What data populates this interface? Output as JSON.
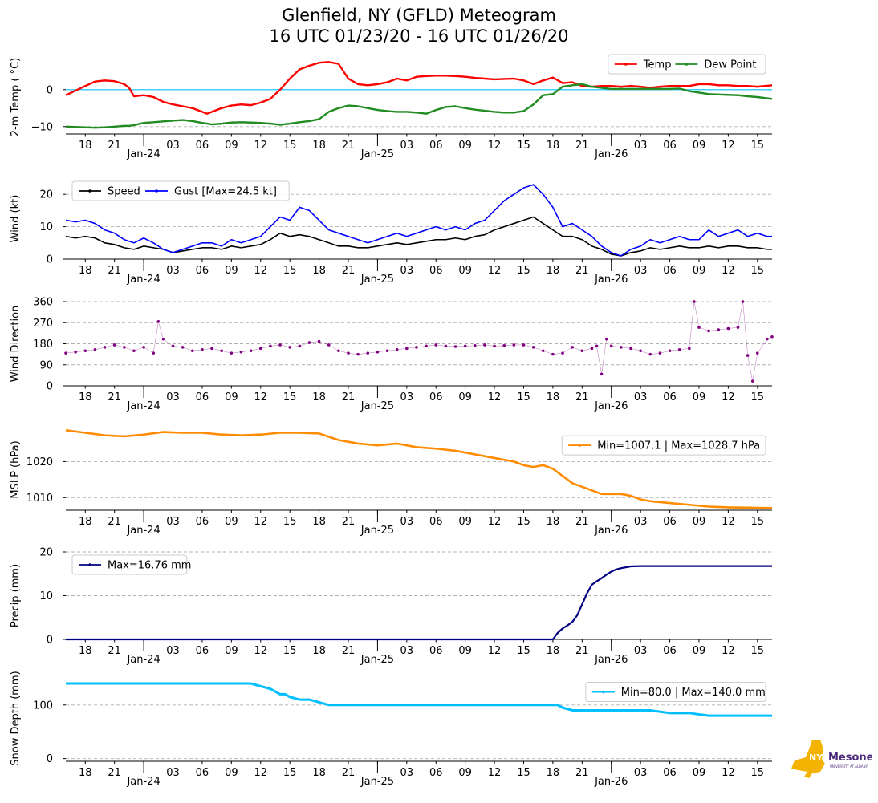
{
  "title": {
    "line1": "Glenfield, NY (GFLD) Meteogram",
    "line2": "16 UTC 01/23/20 - 16 UTC 01/26/20"
  },
  "logo": {
    "text": "Mesonet",
    "badge": "NYS",
    "subtext": "UNIVERSITY AT ALBANY",
    "icon": "new-york-state-icon"
  },
  "x_axis": {
    "hours_start": 16,
    "hours_end": 88.5,
    "hour_ticks": [
      18,
      21,
      24,
      27,
      30,
      33,
      36,
      39,
      42,
      45,
      48,
      51,
      54,
      57,
      60,
      63,
      66,
      69,
      72,
      75,
      78,
      81,
      84,
      87
    ],
    "hour_labels": [
      "18",
      "21",
      "",
      "03",
      "06",
      "09",
      "12",
      "15",
      "18",
      "21",
      "",
      "03",
      "06",
      "09",
      "12",
      "15",
      "18",
      "21",
      "",
      "03",
      "06",
      "09",
      "12",
      "15"
    ],
    "date_ticks": [
      24,
      48,
      72
    ],
    "date_labels": [
      "Jan-24",
      "Jan-25",
      "Jan-26"
    ]
  },
  "colors": {
    "temp": "#ff0000",
    "dew": "#228b22",
    "zero": "#00bfff",
    "speed": "#000000",
    "gust": "#0000ff",
    "dir": "#800080",
    "mslp": "#ff8c00",
    "precip": "#000080",
    "snow": "#00bfff",
    "grid": "#b0b0b0"
  },
  "chart_data": [
    {
      "type": "line",
      "id": "temp",
      "ylabel": "2-m Temp ( °C)",
      "ylim": [
        -12,
        8
      ],
      "yticks": [
        -10,
        0
      ],
      "ytick_labels": [
        "−10",
        "0"
      ],
      "gridlines": [
        -10
      ],
      "zero_line": 0,
      "x": [
        16,
        18,
        19,
        20,
        21,
        22,
        22.5,
        23,
        24,
        25,
        26,
        27,
        28,
        29,
        30,
        30.5,
        31,
        32,
        33,
        34,
        35,
        36,
        37,
        38,
        39,
        40,
        41,
        42,
        43,
        44,
        45,
        46,
        47,
        48,
        49,
        50,
        51,
        52,
        53,
        54,
        55,
        56,
        57,
        58,
        59,
        60,
        61,
        62,
        63,
        64,
        65,
        66,
        67,
        68,
        69,
        70,
        71,
        72,
        73,
        74,
        75,
        76,
        77,
        78,
        79,
        80,
        81,
        82,
        83,
        84,
        85,
        86,
        87,
        88.5
      ],
      "series": [
        {
          "name": "Temp",
          "color_key": "temp",
          "width": 2.4,
          "legend": "Temp",
          "values": [
            -1.5,
            1,
            2.2,
            2.5,
            2.3,
            1.5,
            0.5,
            -1.8,
            -1.5,
            -2,
            -3.3,
            -4,
            -4.5,
            -5,
            -6,
            -6.5,
            -6,
            -5,
            -4.3,
            -4,
            -4.2,
            -3.5,
            -2.5,
            0,
            3,
            5.5,
            6.5,
            7.3,
            7.5,
            7,
            3,
            1.5,
            1.2,
            1.5,
            2,
            3,
            2.5,
            3.5,
            3.7,
            3.8,
            3.8,
            3.7,
            3.5,
            3.2,
            3,
            2.8,
            2.9,
            3,
            2.5,
            1.5,
            2.5,
            3.3,
            1.8,
            2,
            1,
            0.8,
            1,
            1,
            0.8,
            1,
            0.8,
            0.5,
            0.8,
            1,
            1,
            1,
            1.5,
            1.5,
            1.2,
            1.2,
            1,
            1,
            0.8,
            1.2
          ]
        },
        {
          "name": "Dew Point",
          "color_key": "dew",
          "width": 2.4,
          "legend": "Dew Point",
          "values": [
            -10,
            -10.2,
            -10.3,
            -10.2,
            -10,
            -9.8,
            -9.8,
            -9.6,
            -9,
            -8.8,
            -8.6,
            -8.4,
            -8.2,
            -8.5,
            -9,
            -9.2,
            -9.4,
            -9.2,
            -8.9,
            -8.8,
            -8.9,
            -9,
            -9.2,
            -9.5,
            -9.2,
            -8.8,
            -8.5,
            -8,
            -6,
            -5,
            -4.3,
            -4.5,
            -5,
            -5.5,
            -5.8,
            -6,
            -6,
            -6.2,
            -6.5,
            -5.5,
            -4.7,
            -4.5,
            -5,
            -5.4,
            -5.7,
            -6,
            -6.2,
            -6.2,
            -5.8,
            -4,
            -1.5,
            -1.2,
            0.8,
            1.2,
            1.5,
            0.8,
            0.5,
            0.2,
            0.2,
            0.2,
            0.2,
            0.2,
            0.2,
            0.2,
            0.3,
            -0.4,
            -0.8,
            -1.2,
            -1.3,
            -1.4,
            -1.5,
            -1.8,
            -2,
            -2.5
          ]
        }
      ]
    },
    {
      "type": "line",
      "id": "wind",
      "ylabel": "Wind (kt)",
      "ylim": [
        0,
        25
      ],
      "yticks": [
        0,
        10,
        20
      ],
      "ytick_labels": [
        "0",
        "10",
        "20"
      ],
      "gridlines": [
        10,
        20
      ],
      "x": [
        16,
        17,
        18,
        19,
        20,
        21,
        22,
        23,
        24,
        25,
        26,
        27,
        28,
        29,
        30,
        31,
        32,
        33,
        34,
        35,
        36,
        37,
        38,
        39,
        40,
        41,
        42,
        43,
        44,
        45,
        46,
        47,
        48,
        49,
        50,
        51,
        52,
        53,
        54,
        55,
        56,
        57,
        58,
        59,
        60,
        61,
        62,
        63,
        64,
        65,
        66,
        67,
        68,
        69,
        70,
        71,
        72,
        73,
        74,
        75,
        76,
        77,
        78,
        79,
        80,
        81,
        82,
        83,
        84,
        85,
        86,
        87,
        88,
        88.5
      ],
      "series": [
        {
          "name": "Speed",
          "color_key": "speed",
          "width": 1.6,
          "legend": "Speed",
          "values": [
            7,
            6.5,
            7,
            6.5,
            5,
            4.5,
            3.5,
            3,
            4,
            3.5,
            3,
            2,
            2.5,
            3,
            3.5,
            3.5,
            3,
            4,
            3.5,
            4,
            4.5,
            6,
            8,
            7,
            7.5,
            7,
            6,
            5,
            4,
            4,
            3.5,
            3.5,
            4,
            4.5,
            5,
            4.5,
            5,
            5.5,
            6,
            6,
            6.5,
            6,
            7,
            7.5,
            9,
            10,
            11,
            12,
            13,
            11,
            9,
            7,
            7,
            6,
            4,
            3,
            1.5,
            1,
            2,
            2.5,
            3.5,
            3,
            3.5,
            4,
            3.5,
            3.5,
            4,
            3.5,
            4,
            4,
            3.5,
            3.5,
            3,
            3
          ]
        },
        {
          "name": "Gust",
          "color_key": "gust",
          "width": 1.6,
          "legend": "Gust [Max=24.5 kt]",
          "values": [
            12,
            11.5,
            12,
            11,
            9,
            8,
            6,
            5,
            6.5,
            5,
            3,
            2,
            3,
            4,
            5,
            5,
            4,
            6,
            5,
            6,
            7,
            10,
            13,
            12,
            16,
            15,
            12,
            9,
            8,
            7,
            6,
            5,
            6,
            7,
            8,
            7,
            8,
            9,
            10,
            9,
            10,
            9,
            11,
            12,
            15,
            18,
            20,
            22,
            23,
            20,
            16,
            10,
            11,
            9,
            7,
            4,
            2,
            1,
            3,
            4,
            6,
            5,
            6,
            7,
            6,
            6,
            9,
            7,
            8,
            9,
            7,
            8,
            7,
            7
          ]
        }
      ]
    },
    {
      "type": "scatter",
      "id": "direction",
      "ylabel": "Wind Direction",
      "ylim": [
        0,
        360
      ],
      "yticks": [
        0,
        90,
        180,
        270,
        360
      ],
      "ytick_labels": [
        "0",
        "90",
        "180",
        "270",
        "360"
      ],
      "gridlines": [
        0,
        90,
        180,
        270,
        360
      ],
      "x": [
        16,
        17,
        18,
        19,
        20,
        21,
        22,
        23,
        24,
        25,
        25.5,
        26,
        27,
        28,
        29,
        30,
        31,
        32,
        33,
        34,
        35,
        36,
        37,
        38,
        39,
        40,
        41,
        42,
        43,
        44,
        45,
        46,
        47,
        48,
        49,
        50,
        51,
        52,
        53,
        54,
        55,
        56,
        57,
        58,
        59,
        60,
        61,
        62,
        63,
        64,
        65,
        66,
        67,
        68,
        69,
        70,
        70.5,
        71,
        71.5,
        72,
        73,
        74,
        75,
        76,
        77,
        78,
        79,
        80,
        80.5,
        81,
        82,
        83,
        84,
        85,
        85.5,
        86,
        86.5,
        87,
        88,
        88.5
      ],
      "series": [
        {
          "name": "Direction",
          "color_key": "dir",
          "values": [
            140,
            145,
            150,
            155,
            165,
            175,
            165,
            150,
            165,
            140,
            275,
            200,
            170,
            165,
            150,
            155,
            160,
            150,
            140,
            145,
            150,
            160,
            170,
            175,
            165,
            170,
            185,
            190,
            175,
            150,
            140,
            135,
            140,
            145,
            150,
            155,
            160,
            165,
            170,
            175,
            170,
            168,
            170,
            172,
            175,
            170,
            172,
            175,
            175,
            165,
            150,
            135,
            140,
            165,
            150,
            160,
            170,
            50,
            200,
            170,
            165,
            160,
            150,
            135,
            140,
            150,
            155,
            160,
            360,
            250,
            235,
            240,
            245,
            250,
            360,
            130,
            20,
            140,
            200,
            210
          ]
        }
      ]
    },
    {
      "type": "line",
      "id": "mslp",
      "ylabel": "MSLP (hPa)",
      "ylim": [
        1006.5,
        1029
      ],
      "yticks": [
        1010,
        1020
      ],
      "ytick_labels": [
        "1010",
        "1020"
      ],
      "gridlines": [
        1010,
        1020
      ],
      "x": [
        16,
        18,
        20,
        22,
        24,
        26,
        28,
        30,
        32,
        34,
        36,
        38,
        40,
        42,
        44,
        46,
        48,
        50,
        52,
        54,
        56,
        58,
        60,
        62,
        63,
        64,
        65,
        66,
        67,
        68,
        69,
        70,
        71,
        72,
        73,
        74,
        75,
        76,
        78,
        80,
        82,
        84,
        86,
        88.5
      ],
      "series": [
        {
          "name": "MSLP",
          "color_key": "mslp",
          "width": 2.6,
          "legend": "Min=1007.1 | Max=1028.7 hPa",
          "values": [
            1028.7,
            1028,
            1027.3,
            1027,
            1027.5,
            1028.2,
            1028,
            1028,
            1027.5,
            1027.3,
            1027.5,
            1028,
            1028,
            1027.8,
            1026,
            1025,
            1024.5,
            1025,
            1024,
            1023.6,
            1023,
            1022,
            1021,
            1020,
            1019,
            1018.5,
            1019,
            1018,
            1016,
            1014,
            1013,
            1012,
            1011,
            1011,
            1011,
            1010.5,
            1009.5,
            1009,
            1008.5,
            1008,
            1007.5,
            1007.3,
            1007.2,
            1007.1
          ]
        }
      ]
    },
    {
      "type": "line",
      "id": "precip",
      "ylabel": "Precip (mm)",
      "ylim": [
        0,
        20
      ],
      "yticks": [
        0,
        10,
        20
      ],
      "ytick_labels": [
        "0",
        "10",
        "20"
      ],
      "gridlines": [
        10,
        20
      ],
      "x": [
        16,
        20,
        30,
        40,
        50,
        60,
        65,
        66,
        66.5,
        67,
        67.5,
        68,
        68.5,
        69,
        69.5,
        70,
        70.5,
        71,
        71.5,
        72,
        72.5,
        73,
        74,
        75,
        76,
        78,
        80,
        85,
        88.5
      ],
      "series": [
        {
          "name": "Precip",
          "color_key": "precip",
          "width": 2.2,
          "legend": "Max=16.76 mm",
          "values": [
            0,
            0,
            0,
            0,
            0,
            0,
            0,
            0,
            1.5,
            2.5,
            3.2,
            4,
            5.5,
            8,
            10.5,
            12.5,
            13.3,
            14,
            14.8,
            15.5,
            16,
            16.3,
            16.7,
            16.76,
            16.76,
            16.76,
            16.76,
            16.76,
            16.76
          ]
        }
      ]
    },
    {
      "type": "line",
      "id": "snow",
      "ylabel": "Snow Depth (mm)",
      "ylim": [
        -5,
        155
      ],
      "yticks": [
        0,
        100
      ],
      "ytick_labels": [
        "0",
        "100"
      ],
      "gridlines": [
        0,
        100
      ],
      "x": [
        16,
        20,
        24,
        26,
        28,
        30,
        32,
        34,
        35,
        36,
        37,
        38,
        38.5,
        39,
        40,
        41,
        42,
        43,
        44,
        45,
        48,
        52,
        56,
        60,
        64,
        66,
        66.5,
        67,
        68,
        70,
        72,
        74,
        76,
        78,
        80,
        82,
        84,
        86,
        88.5
      ],
      "series": [
        {
          "name": "Snow",
          "color_key": "snow",
          "width": 3,
          "legend": "Min=80.0 | Max=140.0 mm",
          "values": [
            140,
            140,
            140,
            140,
            140,
            140,
            140,
            140,
            140,
            135,
            130,
            120,
            120,
            115,
            110,
            110,
            105,
            100,
            100,
            100,
            100,
            100,
            100,
            100,
            100,
            100,
            100,
            95,
            90,
            90,
            90,
            90,
            90,
            85,
            85,
            80,
            80,
            80,
            80
          ]
        }
      ]
    }
  ]
}
